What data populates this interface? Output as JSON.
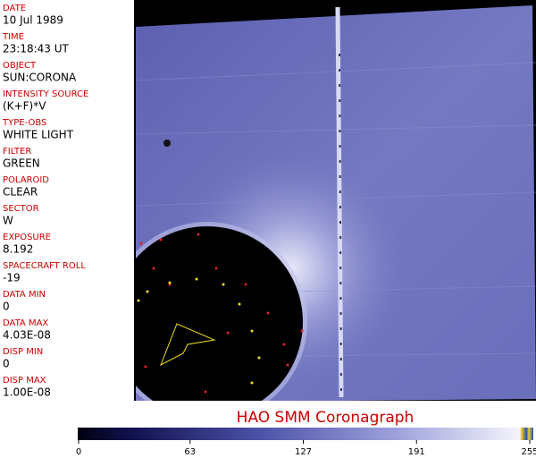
{
  "header_fields": [
    {
      "label": "DATE",
      "value": "10 Jul 1989"
    },
    {
      "label": "TIME",
      "value": "23:18:43 UT"
    },
    {
      "label": "OBJECT",
      "value": "SUN:CORONA"
    },
    {
      "label": "INTENSITY SOURCE",
      "value": "(K+F)*V"
    },
    {
      "label": "TYPE-OBS",
      "value": "WHITE LIGHT"
    },
    {
      "label": "FILTER",
      "value": "GREEN"
    },
    {
      "label": "POLAROID",
      "value": "CLEAR"
    },
    {
      "label": "SECTOR",
      "value": "W"
    },
    {
      "label": "EXPOSURE",
      "value": "8.192"
    },
    {
      "label": "SPACECRAFT ROLL",
      "value": "-19"
    },
    {
      "label": "DATA MIN",
      "value": "0"
    },
    {
      "label": "DATA MAX",
      "value": "4.03E-08"
    },
    {
      "label": "DISP MIN",
      "value": "0"
    },
    {
      "label": "DISP MAX",
      "value": "1.00E-08"
    }
  ],
  "title": "HAO   SMM Coronagraph",
  "colorbar": {
    "range": [
      0,
      255
    ],
    "ticks": [
      0,
      63,
      127,
      191,
      255
    ]
  }
}
